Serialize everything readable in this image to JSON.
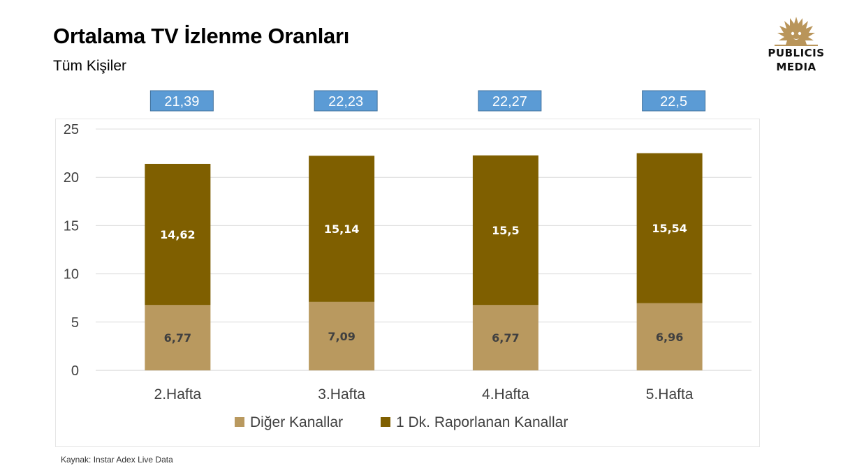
{
  "header": {
    "title": "Ortalama TV İzlenme Oranları",
    "subtitle": "Tüm Kişiler"
  },
  "logo": {
    "line1": "PUBLICIS",
    "line2": "MEDIA",
    "icon": "lion-head-icon",
    "color": "#b9955a"
  },
  "source": "Kaynak: Instar  Adex Live Data",
  "chart_data": {
    "type": "bar",
    "stacked": true,
    "categories": [
      "2.Hafta",
      "3.Hafta",
      "4.Hafta",
      "5.Hafta"
    ],
    "series": [
      {
        "name": "Diğer Kanallar",
        "values": [
          6.77,
          7.09,
          6.77,
          6.96
        ],
        "labels": [
          "6,77",
          "7,09",
          "6,77",
          "6,96"
        ],
        "color": "#b9995f"
      },
      {
        "name": "1 Dk. Raporlanan Kanallar",
        "values": [
          14.62,
          15.14,
          15.5,
          15.54
        ],
        "labels": [
          "14,62",
          "15,14",
          "15,5",
          "15,54"
        ],
        "color": "#7f5f00"
      }
    ],
    "totals": [
      "21,39",
      "22,23",
      "22,27",
      "22,5"
    ],
    "total_box_color": "#5b9bd5",
    "ylim": [
      0,
      25
    ],
    "yticks": [
      0,
      5,
      10,
      15,
      20,
      25
    ],
    "grid": true,
    "legend": "bottom",
    "xlabel": "",
    "ylabel": ""
  }
}
